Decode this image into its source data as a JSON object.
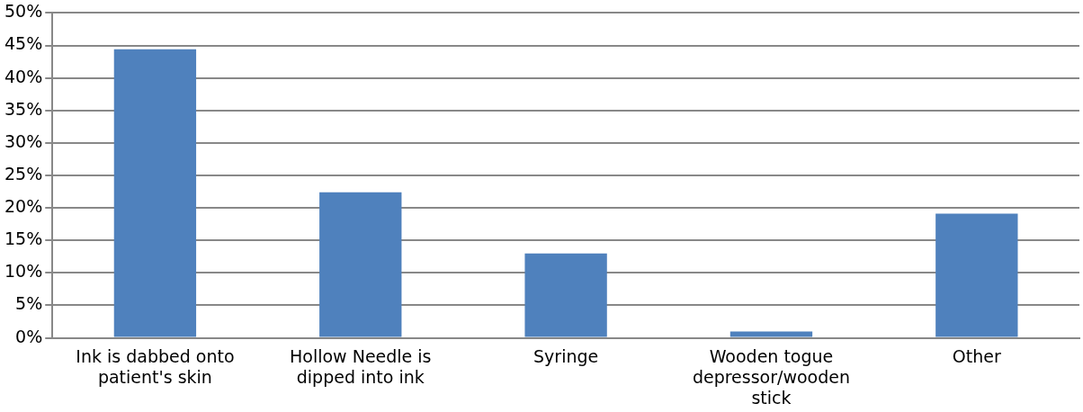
{
  "chart_data": {
    "type": "bar",
    "categories": [
      "Ink is dabbed onto patient's skin",
      "Hollow Needle is dipped into ink",
      "Syringe",
      "Wooden togue depressor/wooden stick",
      "Other"
    ],
    "values": [
      44.4,
      22.4,
      13.0,
      1.0,
      19.1
    ],
    "color": "#4f81bd",
    "ylim": [
      0,
      50
    ],
    "yticks": [
      {
        "value": 0,
        "label": "0%"
      },
      {
        "value": 5,
        "label": "5%"
      },
      {
        "value": 10,
        "label": "10%"
      },
      {
        "value": 15,
        "label": "15%"
      },
      {
        "value": 20,
        "label": "20%"
      },
      {
        "value": 25,
        "label": "25%"
      },
      {
        "value": 30,
        "label": "30%"
      },
      {
        "value": 35,
        "label": "35%"
      },
      {
        "value": 40,
        "label": "40%"
      },
      {
        "value": 45,
        "label": "45%"
      },
      {
        "value": 50,
        "label": "50%"
      }
    ],
    "grid": "y",
    "legend": false
  }
}
